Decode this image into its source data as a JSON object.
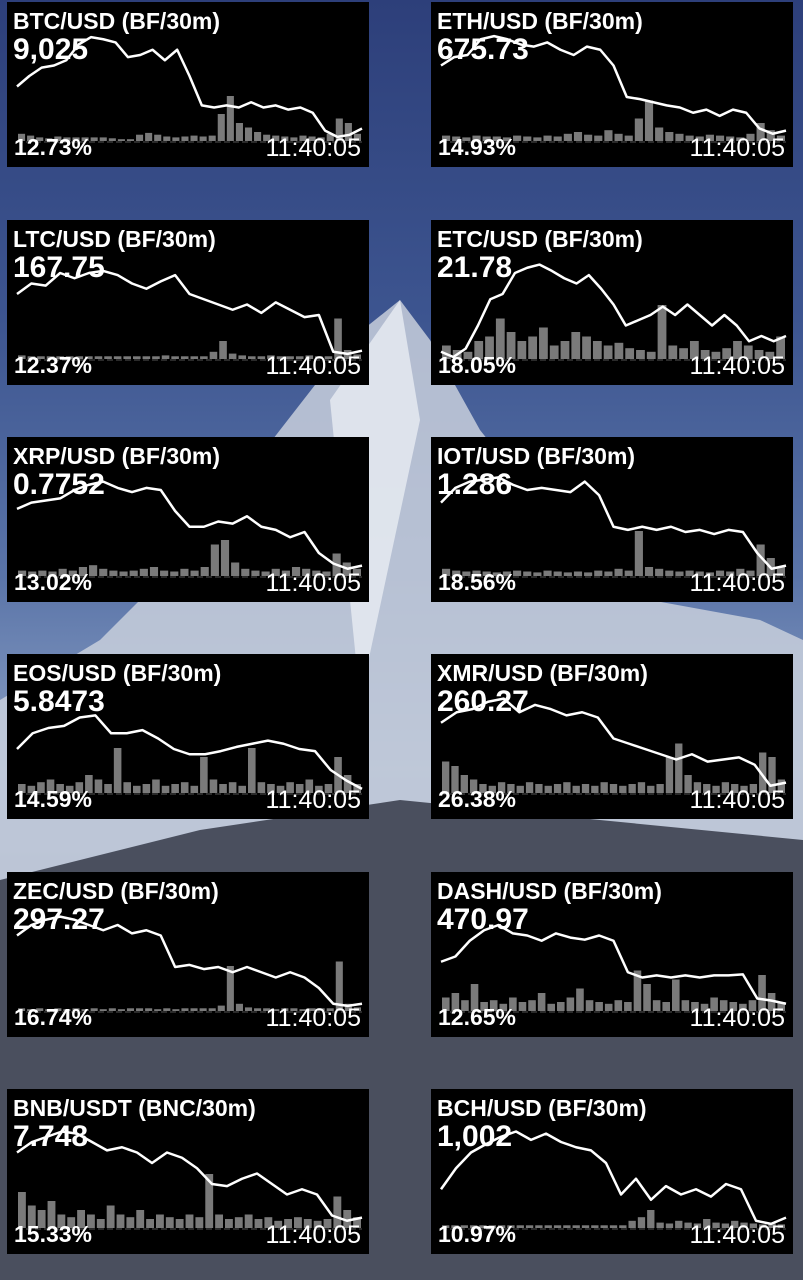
{
  "colors": {
    "widget_bg": "#000000",
    "text": "#ffffff",
    "line": "#ffffff",
    "volume": "#7a7a7a"
  },
  "widgets": [
    {
      "title": "BTC/USD (BF/30m)",
      "price": "9,025",
      "change": "12.73%",
      "time": "11:40:05",
      "line": [
        50,
        60,
        68,
        70,
        75,
        90,
        97,
        95,
        92,
        78,
        80,
        85,
        75,
        85,
        60,
        32,
        30,
        32,
        30,
        35,
        30,
        32,
        28,
        30,
        25,
        8,
        2,
        4,
        10
      ],
      "volume": [
        8,
        6,
        4,
        3,
        5,
        4,
        4,
        4,
        4,
        4,
        3,
        2,
        2,
        7,
        9,
        7,
        5,
        4,
        5,
        6,
        5,
        6,
        30,
        50,
        20,
        15,
        10,
        7,
        6,
        5,
        4,
        6,
        5,
        4,
        8,
        25,
        20,
        8
      ]
    },
    {
      "title": "ETH/USD (BF/30m)",
      "price": "675.73",
      "change": "14.93%",
      "time": "11:40:05",
      "line": [
        70,
        78,
        80,
        95,
        98,
        95,
        90,
        88,
        92,
        85,
        80,
        88,
        85,
        70,
        40,
        38,
        35,
        32,
        30,
        25,
        28,
        22,
        28,
        25,
        10,
        5,
        8
      ],
      "volume": [
        6,
        5,
        4,
        6,
        5,
        5,
        4,
        6,
        5,
        4,
        6,
        5,
        8,
        10,
        7,
        6,
        12,
        8,
        6,
        25,
        45,
        15,
        10,
        8,
        6,
        5,
        7,
        6,
        5,
        4,
        8,
        20,
        12,
        6
      ]
    },
    {
      "title": "LTC/USD (BF/30m)",
      "price": "167.75",
      "change": "12.37%",
      "time": "11:40:05",
      "line": [
        60,
        70,
        68,
        80,
        75,
        80,
        82,
        78,
        70,
        65,
        72,
        78,
        60,
        55,
        50,
        45,
        50,
        42,
        52,
        45,
        38,
        40,
        5,
        3,
        6
      ],
      "volume": [
        4,
        3,
        3,
        3,
        3,
        3,
        3,
        3,
        3,
        3,
        3,
        3,
        3,
        3,
        3,
        4,
        3,
        3,
        3,
        3,
        8,
        20,
        6,
        4,
        3,
        3,
        4,
        3,
        3,
        3,
        4,
        3,
        3,
        45,
        10,
        5
      ]
    },
    {
      "title": "ETC/USD (BF/30m)",
      "price": "21.78",
      "change": "18.05%",
      "time": "11:40:05",
      "line": [
        5,
        0,
        8,
        30,
        55,
        60,
        80,
        85,
        88,
        82,
        75,
        70,
        78,
        65,
        50,
        30,
        35,
        40,
        48,
        40,
        50,
        40,
        30,
        40,
        30,
        15,
        20,
        15,
        20
      ],
      "volume": [
        15,
        10,
        8,
        20,
        25,
        45,
        30,
        20,
        25,
        35,
        15,
        20,
        30,
        25,
        20,
        15,
        18,
        12,
        10,
        8,
        60,
        15,
        12,
        20,
        10,
        8,
        12,
        20,
        15,
        10,
        8,
        25
      ]
    },
    {
      "title": "XRP/USD (BF/30m)",
      "price": "0.7752",
      "change": "13.02%",
      "time": "11:40:05",
      "line": [
        62,
        68,
        70,
        72,
        80,
        85,
        88,
        82,
        78,
        82,
        80,
        60,
        45,
        45,
        50,
        48,
        55,
        45,
        42,
        35,
        40,
        20,
        10,
        5,
        8
      ],
      "volume": [
        6,
        5,
        6,
        5,
        8,
        6,
        10,
        12,
        8,
        6,
        5,
        6,
        8,
        10,
        6,
        5,
        8,
        6,
        10,
        35,
        40,
        15,
        8,
        6,
        5,
        8,
        6,
        10,
        8,
        6,
        5,
        25,
        15,
        8
      ]
    },
    {
      "title": "IOT/USD (BF/30m)",
      "price": "1.286",
      "change": "18.56%",
      "time": "11:40:05",
      "line": [
        68,
        82,
        88,
        90,
        92,
        85,
        80,
        82,
        80,
        78,
        88,
        75,
        45,
        42,
        45,
        42,
        45,
        40,
        42,
        38,
        42,
        40,
        20,
        5,
        8
      ],
      "volume": [
        8,
        6,
        5,
        6,
        5,
        4,
        5,
        6,
        5,
        4,
        6,
        5,
        4,
        5,
        4,
        6,
        5,
        8,
        6,
        50,
        10,
        8,
        6,
        5,
        6,
        5,
        4,
        6,
        5,
        8,
        6,
        35,
        20,
        10
      ]
    },
    {
      "title": "EOS/USD (BF/30m)",
      "price": "5.8473",
      "change": "14.59%",
      "time": "11:40:05",
      "line": [
        40,
        55,
        60,
        62,
        70,
        72,
        55,
        55,
        58,
        50,
        40,
        35,
        35,
        38,
        42,
        45,
        48,
        45,
        40,
        38,
        20,
        10,
        2
      ],
      "volume": [
        10,
        8,
        12,
        15,
        10,
        8,
        12,
        20,
        15,
        10,
        50,
        12,
        8,
        10,
        15,
        8,
        10,
        12,
        8,
        40,
        15,
        10,
        12,
        8,
        50,
        12,
        10,
        8,
        12,
        10,
        15,
        8,
        10,
        40,
        20,
        10
      ]
    },
    {
      "title": "XMR/USD (BF/30m)",
      "price": "260.27",
      "change": "26.38%",
      "time": "11:40:05",
      "line": [
        65,
        75,
        78,
        85,
        88,
        75,
        82,
        78,
        72,
        75,
        70,
        50,
        45,
        40,
        35,
        30,
        35,
        28,
        30,
        32,
        25,
        5,
        8
      ],
      "volume": [
        35,
        30,
        20,
        15,
        10,
        8,
        12,
        10,
        8,
        12,
        10,
        8,
        10,
        12,
        8,
        10,
        8,
        12,
        10,
        8,
        10,
        12,
        8,
        10,
        40,
        55,
        20,
        12,
        10,
        8,
        12,
        10,
        8,
        10,
        45,
        40,
        15
      ]
    },
    {
      "title": "ZEC/USD (BF/30m)",
      "price": "297.27",
      "change": "16.74%",
      "time": "11:40:05",
      "line": [
        70,
        80,
        85,
        88,
        85,
        80,
        75,
        80,
        72,
        75,
        70,
        40,
        42,
        38,
        40,
        35,
        40,
        35,
        30,
        35,
        30,
        20,
        5,
        3,
        5
      ],
      "volume": [
        3,
        2,
        3,
        2,
        3,
        2,
        3,
        2,
        3,
        2,
        3,
        2,
        3,
        3,
        3,
        2,
        3,
        2,
        3,
        3,
        3,
        3,
        6,
        50,
        8,
        4,
        3,
        3,
        2,
        3,
        3,
        2,
        3,
        3,
        3,
        55,
        8,
        4
      ]
    },
    {
      "title": "DASH/USD (BF/30m)",
      "price": "470.97",
      "change": "12.65%",
      "time": "11:40:05",
      "line": [
        45,
        50,
        65,
        75,
        80,
        72,
        70,
        65,
        72,
        68,
        66,
        70,
        65,
        35,
        30,
        32,
        30,
        32,
        30,
        32,
        32,
        33,
        10,
        8,
        5
      ],
      "volume": [
        15,
        20,
        12,
        30,
        10,
        12,
        8,
        15,
        10,
        12,
        20,
        8,
        10,
        15,
        25,
        12,
        10,
        8,
        12,
        10,
        45,
        30,
        12,
        10,
        35,
        12,
        10,
        8,
        15,
        12,
        10,
        8,
        12,
        40,
        20,
        10
      ]
    },
    {
      "title": "BNB/USDT (BNC/30m)",
      "price": "7.748",
      "change": "15.33%",
      "time": "11:40:05",
      "line": [
        70,
        80,
        85,
        90,
        88,
        80,
        72,
        75,
        70,
        60,
        70,
        65,
        55,
        40,
        38,
        45,
        50,
        40,
        30,
        35,
        30,
        10,
        5,
        8
      ],
      "volume": [
        40,
        25,
        20,
        30,
        15,
        12,
        20,
        15,
        10,
        25,
        15,
        12,
        20,
        10,
        15,
        12,
        10,
        15,
        12,
        60,
        15,
        10,
        12,
        15,
        10,
        12,
        8,
        10,
        12,
        10,
        8,
        10,
        35,
        20,
        12
      ]
    },
    {
      "title": "BCH/USD (BF/30m)",
      "price": "1,002",
      "change": "10.97%",
      "time": "11:40:05",
      "line": [
        35,
        55,
        70,
        78,
        85,
        90,
        82,
        88,
        80,
        75,
        72,
        60,
        30,
        45,
        25,
        38,
        30,
        35,
        28,
        40,
        35,
        5,
        2,
        8
      ],
      "volume": [
        3,
        3,
        3,
        3,
        3,
        3,
        3,
        3,
        3,
        3,
        3,
        3,
        3,
        3,
        3,
        3,
        3,
        3,
        3,
        3,
        8,
        12,
        20,
        6,
        5,
        8,
        6,
        5,
        10,
        6,
        5,
        8,
        6,
        5,
        4,
        5,
        4
      ]
    }
  ]
}
